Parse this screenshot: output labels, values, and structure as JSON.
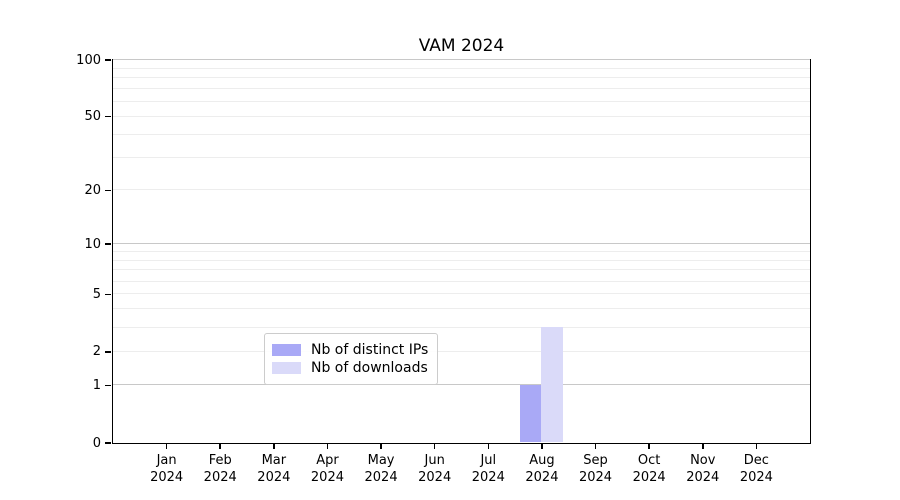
{
  "chart_data": {
    "type": "bar",
    "title": "VAM 2024",
    "xlabel": "",
    "ylabel": "",
    "categories": [
      "Jan",
      "Feb",
      "Mar",
      "Apr",
      "May",
      "Jun",
      "Jul",
      "Aug",
      "Sep",
      "Oct",
      "Nov",
      "Dec"
    ],
    "category_year": "2024",
    "series": [
      {
        "name": "Nb of distinct IPs",
        "color": "#a9a9f6",
        "values": [
          0,
          0,
          0,
          0,
          0,
          0,
          0,
          1,
          0,
          0,
          0,
          0
        ]
      },
      {
        "name": "Nb of downloads",
        "color": "#dadaf9",
        "values": [
          0,
          0,
          0,
          0,
          0,
          0,
          0,
          3,
          0,
          0,
          0,
          0
        ]
      }
    ],
    "yscale": "log1p",
    "ylim": [
      0,
      100
    ],
    "yticks": [
      0,
      1,
      2,
      5,
      10,
      20,
      50,
      100
    ],
    "major_gridlines": [
      1,
      10,
      100
    ],
    "minor_gridlines": [
      2,
      3,
      4,
      5,
      6,
      7,
      8,
      9,
      20,
      30,
      40,
      50,
      60,
      70,
      80,
      90
    ],
    "grid": "horizontal",
    "legend_position": "lower center",
    "colors": {
      "axis": "#000000",
      "grid_major": "#c8c8c8",
      "grid_minor": "#ededed",
      "legend_border": "#cccccc",
      "background": "#ffffff"
    }
  }
}
